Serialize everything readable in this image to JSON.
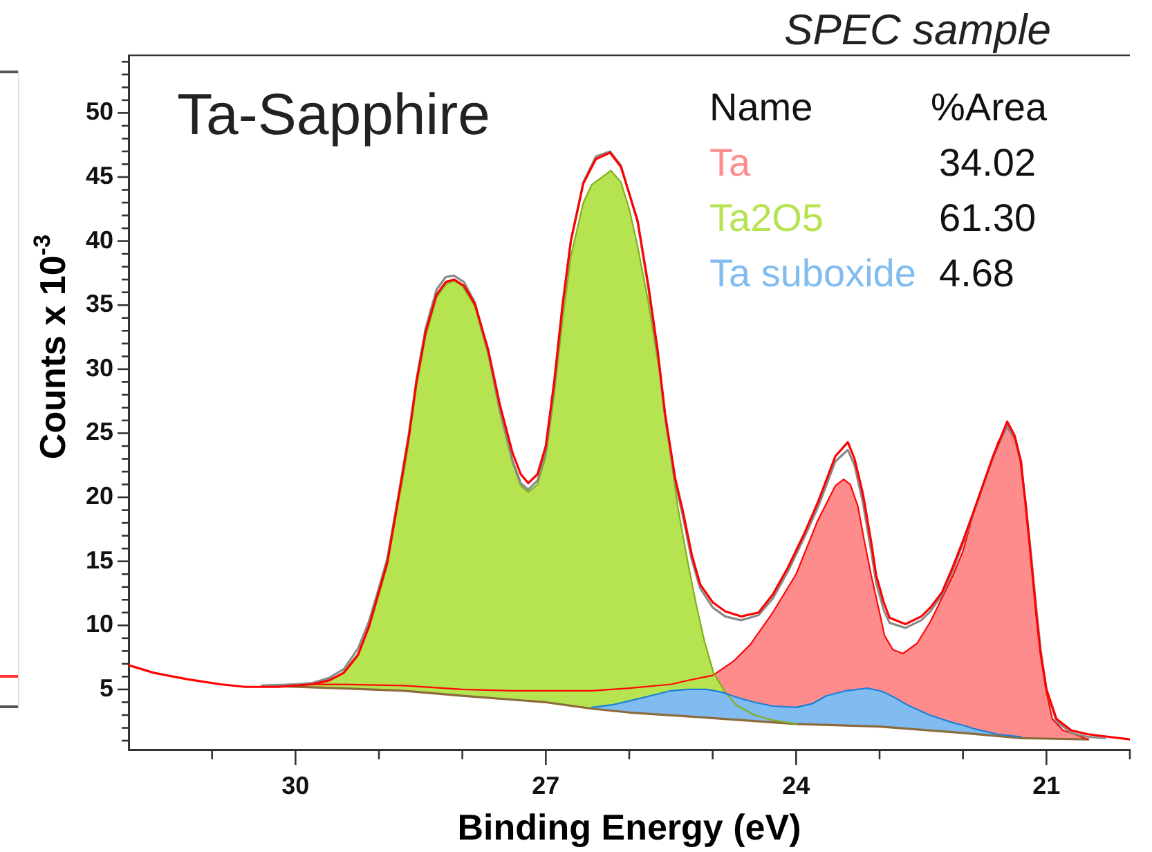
{
  "chart_data": {
    "type": "line",
    "title": "Ta-Sapphire",
    "subtitle": "SPEC sample",
    "xlabel": "Binding Energy (eV)",
    "ylabel": "Counts x 10$^{-3}$",
    "legend": "top right",
    "legend_title": "Name",
    "annotations": [
      "%Area",
      "34.02",
      "61.30",
      "4.68"
    ],
    "xlim": [
      32,
      20
    ],
    "ylim": [
      0.3,
      54.5
    ],
    "xticks": [
      {
        "value": 31,
        "label": null
      },
      30,
      {
        "value": 29,
        "label": null
      },
      {
        "value": 28,
        "label": null
      },
      27,
      {
        "value": 26,
        "label": null
      },
      {
        "value": 25,
        "label": null
      },
      24,
      {
        "value": 23,
        "label": null
      },
      {
        "value": 22,
        "label": null
      },
      21,
      {
        "value": 20,
        "label": null
      }
    ],
    "yticks": [
      {
        "value": 1,
        "label": null
      },
      {
        "value": 2,
        "label": null
      },
      {
        "value": 3,
        "label": null
      },
      {
        "value": 4,
        "label": null
      },
      5,
      {
        "value": 6,
        "label": null
      },
      {
        "value": 7,
        "label": null
      },
      {
        "value": 8,
        "label": null
      },
      {
        "value": 9,
        "label": null
      },
      10,
      {
        "value": 11,
        "label": null
      },
      {
        "value": 12,
        "label": null
      },
      {
        "value": 13,
        "label": null
      },
      {
        "value": 14,
        "label": null
      },
      15,
      {
        "value": 16,
        "label": null
      },
      {
        "value": 17,
        "label": null
      },
      {
        "value": 18,
        "label": null
      },
      {
        "value": 19,
        "label": null
      },
      20,
      {
        "value": 21,
        "label": null
      },
      {
        "value": 22,
        "label": null
      },
      {
        "value": 23,
        "label": null
      },
      {
        "value": 24,
        "label": null
      },
      25,
      {
        "value": 26,
        "label": null
      },
      {
        "value": 27,
        "label": null
      },
      {
        "value": 28,
        "label": null
      },
      {
        "value": 29,
        "label": null
      },
      30,
      {
        "value": 31,
        "label": null
      },
      {
        "value": 32,
        "label": null
      },
      {
        "value": 33,
        "label": null
      },
      {
        "value": 34,
        "label": null
      },
      35,
      {
        "value": 36,
        "label": null
      },
      {
        "value": 37,
        "label": null
      },
      {
        "value": 38,
        "label": null
      },
      {
        "value": 39,
        "label": null
      },
      40,
      {
        "value": 41,
        "label": null
      },
      {
        "value": 42,
        "label": null
      },
      {
        "value": 43,
        "label": null
      },
      {
        "value": 44,
        "label": null
      },
      45,
      {
        "value": 46,
        "label": null
      },
      {
        "value": 47,
        "label": null
      },
      {
        "value": 48,
        "label": null
      },
      {
        "value": 49,
        "label": null
      },
      50,
      {
        "value": 51,
        "label": null
      },
      {
        "value": 52,
        "label": null
      },
      {
        "value": 53,
        "label": null
      },
      {
        "value": 54,
        "label": null
      }
    ],
    "series": [
      {
        "color": "#8c6a3c",
        "x": [
          30.4,
          29.5,
          28.7,
          28.0,
          27.4,
          27.0,
          26.45,
          26.0,
          25.3,
          24.0,
          23.0,
          22.0,
          21.3,
          20.5
        ],
        "values": [
          5.3,
          5.1,
          4.9,
          4.5,
          4.2,
          4.0,
          3.5,
          3.2,
          2.9,
          2.3,
          2.1,
          1.6,
          1.2,
          1.1
        ]
      },
      {
        "type": "area",
        "name": "Ta",
        "color": "#ff8c8c",
        "x": [
          30.4,
          30.0,
          29.5,
          28.7,
          28.0,
          27.4,
          27.0,
          26.45,
          26.0,
          25.5,
          25.3,
          25.0,
          24.75,
          24.55,
          24.28,
          24.0,
          23.74,
          23.53,
          23.43,
          23.35,
          23.26,
          23.18,
          23.1,
          23.0,
          22.94,
          22.84,
          22.72,
          22.55,
          22.39,
          22.12,
          22.0,
          21.85,
          21.58,
          21.47,
          21.38,
          21.3,
          21.25,
          21.18,
          21.12,
          21.07,
          21.0,
          20.93,
          20.8,
          20.66,
          20.5
        ],
        "values": [
          5.3,
          5.4,
          5.4,
          5.3,
          5.0,
          4.9,
          4.9,
          4.9,
          5.1,
          5.4,
          5.7,
          6.1,
          7.2,
          8.5,
          11.0,
          14.0,
          18.2,
          20.9,
          21.4,
          21.0,
          19.3,
          16.5,
          13.9,
          11.0,
          9.2,
          8.1,
          7.8,
          8.6,
          10.3,
          13.9,
          15.8,
          19.3,
          24.3,
          25.5,
          24.5,
          22.8,
          19.3,
          14.9,
          11.0,
          7.8,
          4.8,
          2.7,
          1.8,
          1.5,
          1.1
        ]
      },
      {
        "type": "area",
        "name": "Ta2O5",
        "color": "#b6e350",
        "x": [
          30.4,
          30.0,
          29.8,
          29.6,
          29.5,
          29.42,
          29.25,
          29.12,
          29.01,
          28.9,
          28.77,
          28.7,
          28.64,
          28.55,
          28.44,
          28.31,
          28.2,
          28.1,
          28.0,
          27.85,
          27.69,
          27.55,
          27.4,
          27.3,
          27.21,
          27.1,
          27.0,
          26.9,
          26.8,
          26.7,
          26.55,
          26.45,
          26.22,
          26.1,
          26.0,
          25.9,
          25.77,
          25.63,
          25.55,
          25.42,
          25.3,
          25.2,
          25.1,
          24.99,
          24.85,
          24.72,
          24.5,
          24.28,
          24.0
        ],
        "values": [
          5.3,
          5.4,
          5.5,
          5.8,
          6.0,
          6.4,
          7.8,
          9.8,
          12.2,
          14.7,
          19.5,
          22.0,
          24.5,
          28.7,
          32.6,
          35.6,
          36.6,
          36.9,
          36.5,
          34.9,
          31.1,
          26.6,
          22.7,
          20.9,
          20.4,
          21.0,
          23.2,
          28.0,
          33.8,
          38.8,
          43.0,
          44.4,
          45.5,
          44.6,
          42.5,
          39.6,
          35.2,
          29.5,
          25.5,
          19.3,
          15.0,
          11.7,
          8.8,
          6.3,
          4.8,
          3.8,
          3.0,
          2.6,
          2.3
        ]
      },
      {
        "type": "area",
        "name": "Ta suboxide",
        "color": "#80bcf0",
        "x": [
          26.45,
          26.2,
          26.0,
          25.75,
          25.5,
          25.3,
          25.07,
          24.9,
          24.72,
          24.5,
          24.28,
          24.0,
          23.8,
          23.64,
          23.4,
          23.15,
          23.0,
          22.95,
          22.8,
          22.67,
          22.4,
          22.12,
          22.0,
          21.85,
          21.58,
          21.3
        ],
        "values": [
          3.6,
          3.8,
          4.1,
          4.5,
          4.9,
          5.0,
          5.0,
          4.8,
          4.4,
          4.0,
          3.7,
          3.6,
          3.9,
          4.5,
          4.9,
          5.1,
          4.9,
          4.8,
          4.3,
          3.8,
          3.0,
          2.4,
          2.2,
          1.9,
          1.5,
          1.3
        ]
      },
      {
        "color": "#8a8a8a",
        "x": [
          30.4,
          30.0,
          29.8,
          29.6,
          29.42,
          29.25,
          29.12,
          29.01,
          28.9,
          28.77,
          28.64,
          28.55,
          28.44,
          28.31,
          28.2,
          28.1,
          27.98,
          27.85,
          27.69,
          27.55,
          27.4,
          27.3,
          27.21,
          27.1,
          27.0,
          26.9,
          26.8,
          26.7,
          26.55,
          26.4,
          26.23,
          26.1,
          25.9,
          25.77,
          25.66,
          25.57,
          25.45,
          25.36,
          25.25,
          25.15,
          25.0,
          24.85,
          24.66,
          24.45,
          24.28,
          24.1,
          23.9,
          23.74,
          23.53,
          23.38,
          23.3,
          23.2,
          23.1,
          23.04,
          22.95,
          22.88,
          22.69,
          22.5,
          22.39,
          22.25,
          22.12,
          22.0,
          21.85,
          21.64,
          21.47,
          21.38,
          21.31,
          21.25,
          21.18,
          21.12,
          21.07,
          21.0,
          20.88,
          20.7,
          20.5,
          20.3
        ],
        "values": [
          5.3,
          5.4,
          5.5,
          5.9,
          6.6,
          8.2,
          10.3,
          12.7,
          15.2,
          20.0,
          25.0,
          29.2,
          33.2,
          36.2,
          37.2,
          37.3,
          36.8,
          35.2,
          31.3,
          26.8,
          22.9,
          21.1,
          20.6,
          21.3,
          23.6,
          28.6,
          34.8,
          40.0,
          44.6,
          46.6,
          47.0,
          45.9,
          41.5,
          36.3,
          31.2,
          26.2,
          21.2,
          18.6,
          15.1,
          12.9,
          11.4,
          10.7,
          10.4,
          10.8,
          12.1,
          14.2,
          16.9,
          19.2,
          22.8,
          23.7,
          22.5,
          19.6,
          15.8,
          13.3,
          11.2,
          10.2,
          9.8,
          10.4,
          11.1,
          12.4,
          14.3,
          16.4,
          19.2,
          23.1,
          25.6,
          24.6,
          22.8,
          19.6,
          15.2,
          11.2,
          8.1,
          5.0,
          2.5,
          1.6,
          1.3,
          1.2
        ]
      },
      {
        "color": "#ff0000",
        "x": [
          32.0,
          31.7,
          31.3,
          30.9,
          30.6,
          30.2,
          29.8,
          29.6,
          29.42,
          29.25,
          29.12,
          29.01,
          28.9,
          28.77,
          28.64,
          28.55,
          28.44,
          28.31,
          28.2,
          28.1,
          27.98,
          27.85,
          27.69,
          27.55,
          27.4,
          27.3,
          27.21,
          27.1,
          27.0,
          26.9,
          26.8,
          26.7,
          26.55,
          26.4,
          26.23,
          26.1,
          25.9,
          25.77,
          25.66,
          25.57,
          25.45,
          25.36,
          25.25,
          25.15,
          25.0,
          24.85,
          24.66,
          24.45,
          24.28,
          24.1,
          23.9,
          23.74,
          23.53,
          23.38,
          23.3,
          23.2,
          23.1,
          23.04,
          22.95,
          22.88,
          22.69,
          22.5,
          22.39,
          22.25,
          22.12,
          22.0,
          21.85,
          21.64,
          21.47,
          21.38,
          21.31,
          21.25,
          21.18,
          21.12,
          21.07,
          21.0,
          20.88,
          20.7,
          20.5,
          20.25,
          20.0
        ],
        "values": [
          6.9,
          6.3,
          5.8,
          5.4,
          5.2,
          5.2,
          5.4,
          5.7,
          6.3,
          7.7,
          9.9,
          12.4,
          14.9,
          19.8,
          24.8,
          29.0,
          32.9,
          35.8,
          36.8,
          37.0,
          36.5,
          35.1,
          31.5,
          27.2,
          23.5,
          21.8,
          21.1,
          21.8,
          24.0,
          29.0,
          35.0,
          40.0,
          44.5,
          46.4,
          46.9,
          45.8,
          41.6,
          36.5,
          31.5,
          26.5,
          21.5,
          19.0,
          15.5,
          13.2,
          11.8,
          11.1,
          10.7,
          11.0,
          12.4,
          14.5,
          17.2,
          19.6,
          23.2,
          24.3,
          23.0,
          20.3,
          16.5,
          13.9,
          11.8,
          10.6,
          10.1,
          10.7,
          11.4,
          12.6,
          14.6,
          16.6,
          19.3,
          23.2,
          25.9,
          24.8,
          22.9,
          19.5,
          14.9,
          10.8,
          7.8,
          5.0,
          2.7,
          1.8,
          1.5,
          1.3,
          1.1
        ]
      }
    ]
  }
}
